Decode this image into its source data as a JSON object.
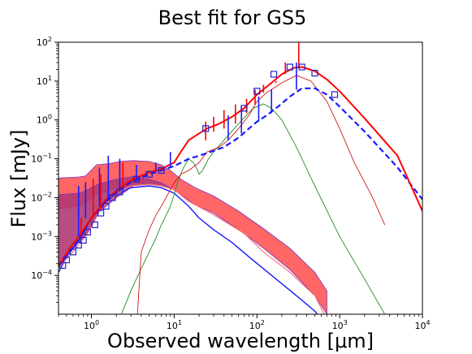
{
  "chart_data": {
    "type": "line",
    "title": "Best fit for GS5",
    "xlabel": "Observed wavelength [μm]",
    "ylabel": "Flux [mJy]",
    "xscale": "log",
    "yscale": "log",
    "xlim": [
      0.4,
      10000
    ],
    "ylim": [
      1e-05,
      100
    ],
    "grid": false,
    "xticks": [
      {
        "value": 1,
        "label": "10^0"
      },
      {
        "value": 10,
        "label": "10^1"
      },
      {
        "value": 100,
        "label": "10^2"
      },
      {
        "value": 1000,
        "label": "10^3"
      },
      {
        "value": 10000,
        "label": "10^4"
      }
    ],
    "yticks": [
      {
        "value": 0.0001,
        "label": "10^-4"
      },
      {
        "value": 0.001,
        "label": "10^-3"
      },
      {
        "value": 0.01,
        "label": "10^-2"
      },
      {
        "value": 0.1,
        "label": "10^-1"
      },
      {
        "value": 1,
        "label": "10^0"
      },
      {
        "value": 10,
        "label": "10^1"
      },
      {
        "value": 100,
        "label": "10^2"
      }
    ],
    "series": [
      {
        "kind": "band",
        "color": "#ff5555",
        "edge": "#7a33c9",
        "upper": [
          [
            0.4,
            0.032
          ],
          [
            0.7,
            0.034
          ],
          [
            0.85,
            0.036
          ],
          [
            1.15,
            0.07
          ],
          [
            1.6,
            0.075
          ],
          [
            2.2,
            0.085
          ],
          [
            3.2,
            0.09
          ],
          [
            5,
            0.085
          ],
          [
            7,
            0.07
          ],
          [
            9,
            0.05
          ],
          [
            12,
            0.03
          ],
          [
            18,
            0.018
          ],
          [
            30,
            0.011
          ],
          [
            60,
            0.0045
          ],
          [
            120,
            0.0016
          ],
          [
            250,
            0.0005
          ],
          [
            500,
            0.00012
          ],
          [
            700,
            4e-05
          ]
        ],
        "lower": [
          [
            0.4,
            0.005
          ],
          [
            0.7,
            0.006
          ],
          [
            0.85,
            0.007
          ],
          [
            1.15,
            0.012
          ],
          [
            1.6,
            0.015
          ],
          [
            2.2,
            0.018
          ],
          [
            3.2,
            0.022
          ],
          [
            5,
            0.022
          ],
          [
            7,
            0.02
          ],
          [
            9,
            0.018
          ],
          [
            12,
            0.012
          ],
          [
            18,
            0.0065
          ],
          [
            30,
            0.004
          ],
          [
            60,
            0.0015
          ],
          [
            120,
            0.0005
          ],
          [
            250,
            0.00014
          ],
          [
            500,
            3e-05
          ],
          [
            700,
            1e-05
          ]
        ]
      },
      {
        "kind": "band",
        "color": "#b03a73",
        "edge": "#7a33c9",
        "upper": [
          [
            0.4,
            0.012
          ],
          [
            0.7,
            0.013
          ],
          [
            0.85,
            0.015
          ],
          [
            1.2,
            0.022
          ],
          [
            2,
            0.03
          ],
          [
            3.2,
            0.035
          ],
          [
            5,
            0.03
          ],
          [
            7,
            0.024
          ],
          [
            9,
            0.018
          ]
        ],
        "lower": [
          [
            0.4,
            0.00017
          ],
          [
            0.5,
            0.0003
          ],
          [
            0.7,
            0.0007
          ],
          [
            0.85,
            0.001
          ],
          [
            1.2,
            0.004
          ],
          [
            2,
            0.01
          ],
          [
            3.2,
            0.02
          ],
          [
            5,
            0.022
          ],
          [
            7,
            0.02
          ],
          [
            9,
            0.018
          ]
        ]
      },
      {
        "kind": "line",
        "color": "#1a1aff",
        "width": 1.4,
        "dash": "",
        "points": [
          [
            0.4,
            0.00012
          ],
          [
            0.5,
            0.0003
          ],
          [
            0.7,
            0.0008
          ],
          [
            1,
            0.003
          ],
          [
            1.5,
            0.008
          ],
          [
            2,
            0.012
          ],
          [
            3,
            0.018
          ],
          [
            5,
            0.02
          ],
          [
            7,
            0.018
          ],
          [
            10,
            0.013
          ],
          [
            15,
            0.006
          ],
          [
            20,
            0.003
          ],
          [
            30,
            0.0015
          ],
          [
            50,
            0.0007
          ],
          [
            80,
            0.0003
          ],
          [
            150,
            0.0001
          ],
          [
            300,
            3e-05
          ],
          [
            500,
            1.2e-05
          ],
          [
            700,
            5e-06
          ]
        ]
      },
      {
        "kind": "line",
        "color": "#ff7777",
        "width": 1.2,
        "dash": "",
        "points": [
          [
            0.4,
            0.00016
          ],
          [
            0.6,
            0.0004
          ],
          [
            0.9,
            0.0012
          ],
          [
            1.3,
            0.005
          ],
          [
            2,
            0.012
          ],
          [
            3,
            0.02
          ],
          [
            5,
            0.022
          ],
          [
            7,
            0.02
          ],
          [
            10,
            0.016
          ],
          [
            15,
            0.008
          ],
          [
            25,
            0.0045
          ],
          [
            40,
            0.0025
          ],
          [
            70,
            0.0012
          ],
          [
            120,
            0.0004
          ],
          [
            250,
            0.00012
          ],
          [
            500,
            3e-05
          ],
          [
            650,
            1e-05
          ]
        ]
      },
      {
        "kind": "line",
        "color": "#228b22",
        "width": 0.9,
        "dash": "",
        "points": [
          [
            2.3,
            1e-05
          ],
          [
            3,
            4e-05
          ],
          [
            4,
            0.00015
          ],
          [
            5,
            0.0004
          ],
          [
            6,
            0.0009
          ],
          [
            7,
            0.002
          ],
          [
            8,
            0.0035
          ],
          [
            9,
            0.006
          ],
          [
            10,
            0.012
          ],
          [
            11,
            0.025
          ],
          [
            13,
            0.06
          ],
          [
            15,
            0.1
          ],
          [
            17,
            0.08
          ],
          [
            18.5,
            0.06
          ],
          [
            20,
            0.04
          ],
          [
            22,
            0.05
          ],
          [
            26,
            0.1
          ],
          [
            30,
            0.15
          ],
          [
            40,
            0.3
          ],
          [
            60,
            0.8
          ],
          [
            90,
            2
          ],
          [
            120,
            2.6
          ],
          [
            150,
            2
          ],
          [
            200,
            1
          ],
          [
            300,
            0.2
          ],
          [
            500,
            0.02
          ],
          [
            1000,
            0.001
          ],
          [
            2000,
            8e-05
          ],
          [
            3500,
            1e-05
          ]
        ]
      },
      {
        "kind": "line",
        "color": "#cc0000",
        "width": 0.8,
        "dash": "",
        "points": [
          [
            3.6,
            1e-05
          ],
          [
            4,
            0.0004
          ],
          [
            5,
            0.0015
          ],
          [
            6,
            0.0035
          ],
          [
            7,
            0.006
          ],
          [
            8,
            0.01
          ],
          [
            9,
            0.016
          ],
          [
            10,
            0.024
          ],
          [
            12,
            0.04
          ],
          [
            15,
            0.05
          ],
          [
            20,
            0.08
          ],
          [
            25,
            0.15
          ],
          [
            35,
            0.2
          ],
          [
            45,
            0.3
          ],
          [
            60,
            0.6
          ],
          [
            80,
            1.3
          ],
          [
            100,
            3
          ],
          [
            130,
            5
          ],
          [
            200,
            9
          ],
          [
            300,
            14
          ],
          [
            450,
            10
          ],
          [
            700,
            3
          ],
          [
            1000,
            0.6
          ],
          [
            1500,
            0.08
          ],
          [
            2500,
            0.01
          ],
          [
            3500,
            0.002
          ]
        ]
      },
      {
        "kind": "line",
        "color": "#1a1aff",
        "width": 2.2,
        "dash": "7,4",
        "points": [
          [
            0.4,
            0.00017
          ],
          [
            0.55,
            0.0004
          ],
          [
            0.75,
            0.001
          ],
          [
            1,
            0.003
          ],
          [
            1.5,
            0.008
          ],
          [
            2,
            0.014
          ],
          [
            3,
            0.025
          ],
          [
            5,
            0.04
          ],
          [
            7,
            0.05
          ],
          [
            10,
            0.065
          ],
          [
            15,
            0.1
          ],
          [
            20,
            0.12
          ],
          [
            30,
            0.16
          ],
          [
            40,
            0.2
          ],
          [
            60,
            0.35
          ],
          [
            80,
            0.6
          ],
          [
            100,
            0.9
          ],
          [
            130,
            1.3
          ],
          [
            180,
            2.2
          ],
          [
            250,
            4
          ],
          [
            350,
            6.5
          ],
          [
            500,
            6.5
          ],
          [
            700,
            4.5
          ],
          [
            1000,
            2.2
          ],
          [
            2000,
            0.5
          ],
          [
            5000,
            0.06
          ],
          [
            10000,
            0.009
          ]
        ]
      },
      {
        "kind": "line",
        "color": "#ff0000",
        "width": 2.0,
        "dash": "",
        "points": [
          [
            0.4,
            0.00017
          ],
          [
            0.55,
            0.0005
          ],
          [
            0.75,
            0.0012
          ],
          [
            1,
            0.003
          ],
          [
            1.5,
            0.009
          ],
          [
            2,
            0.015
          ],
          [
            3,
            0.028
          ],
          [
            5,
            0.045
          ],
          [
            7,
            0.055
          ],
          [
            10,
            0.08
          ],
          [
            12,
            0.15
          ],
          [
            15,
            0.3
          ],
          [
            20,
            0.45
          ],
          [
            25,
            0.6
          ],
          [
            35,
            0.8
          ],
          [
            50,
            1.2
          ],
          [
            70,
            2
          ],
          [
            100,
            4.5
          ],
          [
            150,
            9
          ],
          [
            200,
            15
          ],
          [
            280,
            22
          ],
          [
            350,
            23
          ],
          [
            500,
            18
          ],
          [
            700,
            11
          ],
          [
            1000,
            5.5
          ],
          [
            2000,
            1.1
          ],
          [
            5000,
            0.12
          ],
          [
            10000,
            0.0045
          ]
        ]
      }
    ],
    "spikes": [
      {
        "color": "#1a1aff",
        "width": 1.6,
        "points": [
          [
            0.7,
            0.001,
            0.02
          ],
          [
            0.85,
            0.003,
            0.025
          ],
          [
            1.25,
            0.006,
            0.06
          ],
          [
            1.6,
            0.009,
            0.12
          ],
          [
            2.2,
            0.014,
            0.1
          ],
          [
            3.5,
            0.03,
            0.07
          ],
          [
            6,
            0.05,
            0.08
          ],
          [
            9,
            0.06,
            0.15
          ],
          [
            45,
            0.3,
            1.3
          ],
          [
            65,
            0.45,
            2.2
          ],
          [
            105,
            0.9,
            4
          ],
          [
            150,
            1.5,
            6
          ],
          [
            300,
            6,
            30
          ]
        ]
      },
      {
        "color": "#ff0000",
        "width": 1.6,
        "points": [
          [
            0.75,
            0.001,
            0.003
          ],
          [
            1.05,
            0.003,
            0.03
          ],
          [
            1.3,
            0.005,
            0.04
          ],
          [
            2.4,
            0.02,
            0.08
          ],
          [
            24,
            0.3,
            0.9
          ],
          [
            30,
            0.5,
            1.2
          ],
          [
            40,
            0.6,
            1.8
          ],
          [
            55,
            0.8,
            2.5
          ],
          [
            75,
            1.5,
            3.5
          ],
          [
            95,
            2.5,
            6
          ],
          [
            120,
            5,
            8
          ],
          [
            170,
            9,
            10
          ],
          [
            220,
            15,
            30
          ],
          [
            320,
            22,
            100
          ]
        ]
      }
    ],
    "markers": {
      "shape": "square",
      "color": "#2222cc",
      "points": [
        [
          0.45,
          0.00018
        ],
        [
          0.5,
          0.00025
        ],
        [
          0.6,
          0.0004
        ],
        [
          0.7,
          0.0006
        ],
        [
          0.8,
          0.0008
        ],
        [
          0.9,
          0.0013
        ],
        [
          1.1,
          0.002
        ],
        [
          1.3,
          0.004
        ],
        [
          1.5,
          0.006
        ],
        [
          1.8,
          0.01
        ],
        [
          2.2,
          0.014
        ],
        [
          3.5,
          0.03
        ],
        [
          5,
          0.04
        ],
        [
          7,
          0.05
        ],
        [
          24,
          0.6
        ],
        [
          70,
          2
        ],
        [
          100,
          5.5
        ],
        [
          160,
          15
        ],
        [
          250,
          23
        ],
        [
          350,
          23
        ],
        [
          500,
          16
        ],
        [
          870,
          4.5
        ]
      ]
    }
  }
}
